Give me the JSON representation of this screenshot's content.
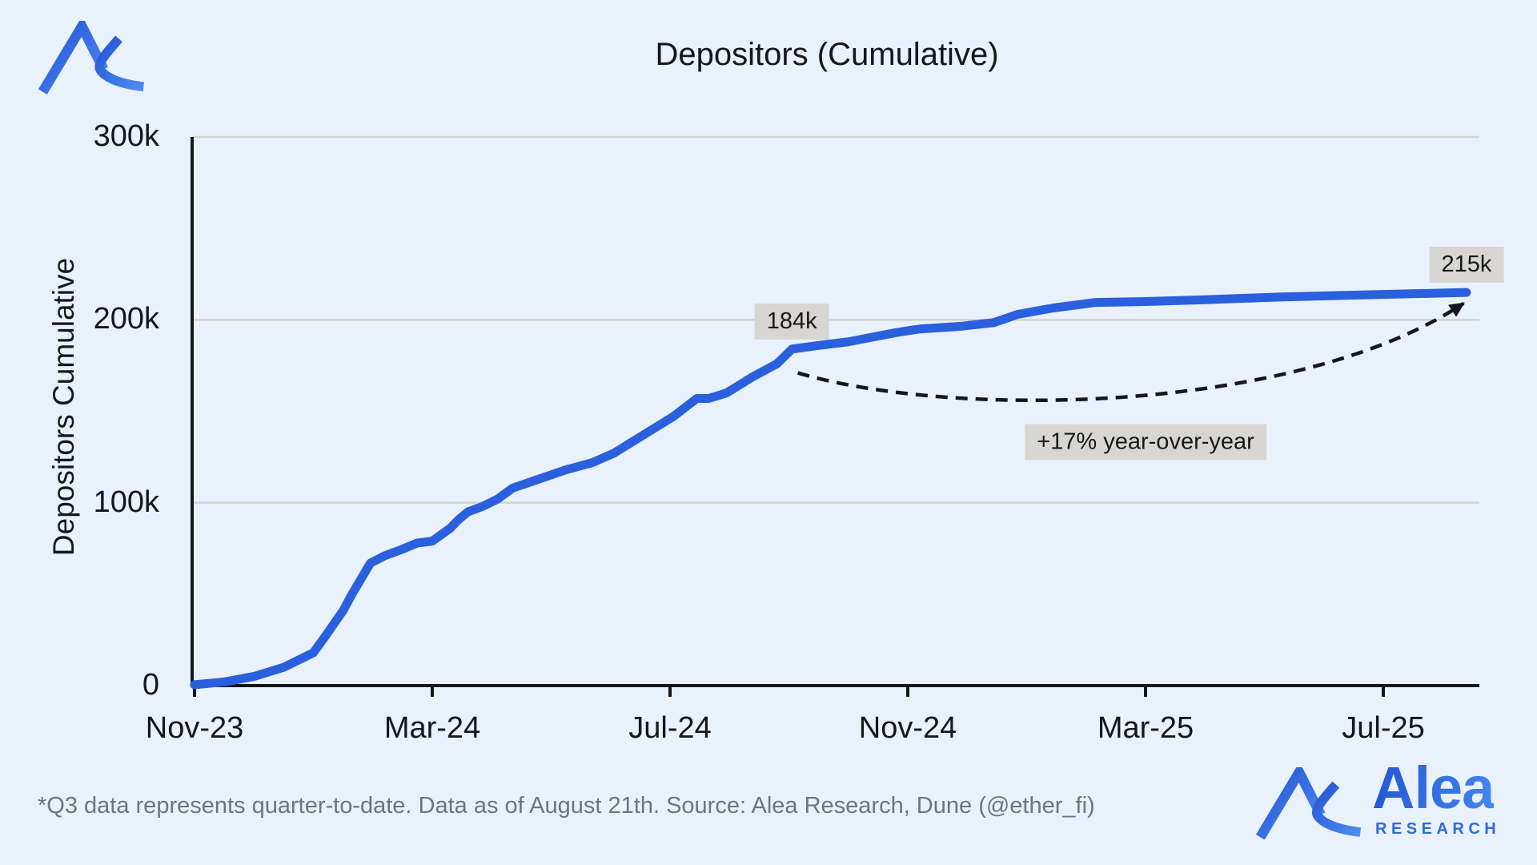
{
  "header": {
    "title": "Depositors (Cumulative)"
  },
  "footer": {
    "note": "*Q3 data represents quarter-to-date. Data as of August 21th. Source: Alea Research, Dune (@ether_fi)"
  },
  "branding": {
    "logo_name": "alea-logo-mark",
    "word": "Alea",
    "subword": "RESEARCH"
  },
  "colors": {
    "background": "#e9f1fc",
    "line": "#2a60de",
    "grid": "#d6d2cd",
    "axis": "#15171c",
    "text": "#15171c",
    "muted_text": "#6d7580",
    "annotation_bg": "#d8d6d2",
    "brand_dark": "#2554d4",
    "brand_light": "#4e8cf2"
  },
  "chart_data": {
    "type": "line",
    "title": "Depositors (Cumulative)",
    "xlabel": "",
    "ylabel": "Depositors Cumulative",
    "x_unit": "months since Nov-2023",
    "xlim": [
      0,
      21.7
    ],
    "ylim": [
      0,
      300
    ],
    "grid": "horizontal",
    "legend": "none",
    "x_ticks": [
      {
        "label": "Nov-23",
        "month": 0
      },
      {
        "label": "Mar-24",
        "month": 4
      },
      {
        "label": "Jul-24",
        "month": 8
      },
      {
        "label": "Nov-24",
        "month": 12
      },
      {
        "label": "Mar-25",
        "month": 16
      },
      {
        "label": "Jul-25",
        "month": 20
      }
    ],
    "y_ticks": [
      {
        "label": "0",
        "value": 0
      },
      {
        "label": "100k",
        "value": 100
      },
      {
        "label": "200k",
        "value": 200
      },
      {
        "label": "300k",
        "value": 300
      }
    ],
    "series": [
      {
        "name": "Depositors cumulative (thousands)",
        "points": [
          [
            0,
            0.5
          ],
          [
            0.5,
            2
          ],
          [
            1,
            5
          ],
          [
            1.5,
            10
          ],
          [
            2,
            18
          ],
          [
            2.2,
            27
          ],
          [
            2.5,
            41
          ],
          [
            2.65,
            50
          ],
          [
            2.85,
            61
          ],
          [
            2.96,
            67
          ],
          [
            3.2,
            71
          ],
          [
            3.45,
            74
          ],
          [
            3.75,
            78
          ],
          [
            4,
            79
          ],
          [
            4.3,
            86
          ],
          [
            4.45,
            91
          ],
          [
            4.6,
            95
          ],
          [
            4.85,
            98
          ],
          [
            5.1,
            102
          ],
          [
            5.35,
            108
          ],
          [
            5.8,
            113
          ],
          [
            6.25,
            118
          ],
          [
            6.7,
            122
          ],
          [
            7.05,
            127
          ],
          [
            7.35,
            133
          ],
          [
            7.7,
            140
          ],
          [
            8.05,
            147
          ],
          [
            8.45,
            157
          ],
          [
            8.65,
            157
          ],
          [
            8.95,
            160
          ],
          [
            9.4,
            169
          ],
          [
            9.8,
            176
          ],
          [
            10.05,
            184
          ],
          [
            10.5,
            186
          ],
          [
            11,
            188
          ],
          [
            11.4,
            190.5
          ],
          [
            11.8,
            193
          ],
          [
            12.2,
            195
          ],
          [
            12.9,
            196.5
          ],
          [
            13.45,
            198.5
          ],
          [
            13.85,
            203
          ],
          [
            14.45,
            206.5
          ],
          [
            15.15,
            209.5
          ],
          [
            16,
            210
          ],
          [
            17,
            211
          ],
          [
            18.3,
            212.5
          ],
          [
            19.5,
            213.5
          ],
          [
            20.8,
            214.5
          ],
          [
            21.4,
            215
          ]
        ]
      }
    ],
    "annotations": [
      {
        "kind": "value-label",
        "text": "184k",
        "month": 10.05,
        "value": 184
      },
      {
        "kind": "value-label",
        "text": "215k",
        "month": 21.4,
        "value": 215
      },
      {
        "kind": "note",
        "text": "+17% year-over-year",
        "month": 16,
        "value": 133
      },
      {
        "kind": "arrow",
        "from_month": 10.15,
        "from_value": 171,
        "to_month": 21.35,
        "to_value": 209
      }
    ]
  }
}
